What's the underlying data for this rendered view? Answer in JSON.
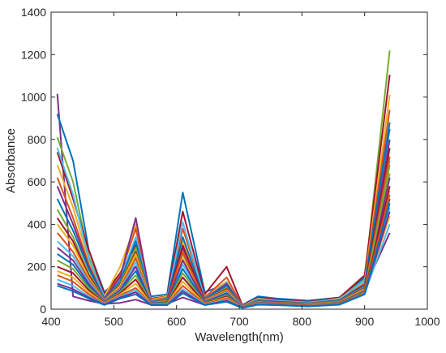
{
  "chart_data": {
    "type": "line",
    "title": "",
    "xlabel": "Wavelength(nm)",
    "ylabel": "Absorbance",
    "xlim": [
      400,
      1000
    ],
    "ylim": [
      0,
      1400
    ],
    "xticks": [
      400,
      500,
      600,
      700,
      800,
      900,
      1000
    ],
    "yticks": [
      0,
      200,
      400,
      600,
      800,
      1000,
      1200,
      1400
    ],
    "xtick_labels": [
      "400",
      "500",
      "600",
      "700",
      "800",
      "900",
      "1000"
    ],
    "ytick_labels": [
      "0",
      "200",
      "400",
      "600",
      "800",
      "1000",
      "1200",
      "1400"
    ],
    "grid": false,
    "legend": "none",
    "x": [
      410,
      435,
      460,
      485,
      510,
      535,
      560,
      585,
      610,
      645,
      680,
      705,
      730,
      760,
      810,
      860,
      900,
      940
    ],
    "series": [
      {
        "color": "#7E2F8E",
        "values": [
          1015,
          60,
          40,
          25,
          30,
          45,
          20,
          25,
          55,
          20,
          40,
          15,
          30,
          25,
          20,
          35,
          100,
          360
        ]
      },
      {
        "color": "#0072BD",
        "values": [
          920,
          700,
          280,
          80,
          150,
          200,
          60,
          70,
          550,
          80,
          120,
          20,
          60,
          50,
          40,
          55,
          150,
          850
        ]
      },
      {
        "color": "#77AC30",
        "values": [
          810,
          600,
          250,
          60,
          150,
          250,
          40,
          55,
          300,
          60,
          110,
          15,
          50,
          40,
          30,
          50,
          140,
          1220
        ]
      },
      {
        "color": "#A2142F",
        "values": [
          740,
          520,
          280,
          70,
          170,
          300,
          50,
          60,
          460,
          70,
          200,
          18,
          55,
          45,
          35,
          55,
          160,
          1105
        ]
      },
      {
        "color": "#EDB120",
        "values": [
          680,
          480,
          230,
          60,
          200,
          400,
          45,
          60,
          320,
          60,
          130,
          16,
          50,
          40,
          30,
          50,
          130,
          1010
        ]
      },
      {
        "color": "#D95319",
        "values": [
          620,
          430,
          210,
          55,
          160,
          380,
          40,
          55,
          380,
          55,
          150,
          15,
          45,
          38,
          30,
          45,
          120,
          940
        ]
      },
      {
        "color": "#4DBEEE",
        "values": [
          760,
          540,
          240,
          58,
          140,
          340,
          38,
          50,
          410,
          50,
          125,
          14,
          48,
          40,
          32,
          48,
          135,
          700
        ]
      },
      {
        "color": "#7E2F8E",
        "values": [
          580,
          400,
          200,
          50,
          150,
          430,
          35,
          48,
          290,
          48,
          120,
          14,
          42,
          36,
          28,
          42,
          115,
          800
        ]
      },
      {
        "color": "#0072BD",
        "values": [
          520,
          370,
          190,
          48,
          130,
          320,
          34,
          46,
          340,
          46,
          110,
          13,
          40,
          34,
          27,
          40,
          110,
          880
        ]
      },
      {
        "color": "#77AC30",
        "values": [
          470,
          340,
          170,
          45,
          120,
          290,
          32,
          44,
          260,
          44,
          100,
          13,
          38,
          32,
          26,
          38,
          105,
          640
        ]
      },
      {
        "color": "#A2142F",
        "values": [
          430,
          320,
          160,
          44,
          115,
          270,
          31,
          42,
          300,
          42,
          95,
          12,
          36,
          31,
          25,
          36,
          100,
          760
        ]
      },
      {
        "color": "#EDB120",
        "values": [
          400,
          300,
          150,
          42,
          110,
          260,
          30,
          40,
          240,
          40,
          90,
          12,
          34,
          30,
          24,
          34,
          95,
          560
        ]
      },
      {
        "color": "#D95319",
        "values": [
          360,
          270,
          140,
          40,
          100,
          240,
          29,
          38,
          270,
          38,
          85,
          11,
          32,
          29,
          23,
          32,
          90,
          720
        ]
      },
      {
        "color": "#4DBEEE",
        "values": [
          320,
          250,
          130,
          38,
          95,
          220,
          28,
          36,
          210,
          36,
          80,
          11,
          30,
          28,
          22,
          30,
          88,
          480
        ]
      },
      {
        "color": "#7E2F8E",
        "values": [
          290,
          230,
          120,
          36,
          90,
          200,
          27,
          34,
          230,
          34,
          75,
          10,
          29,
          27,
          21,
          29,
          86,
          620
        ]
      },
      {
        "color": "#0072BD",
        "values": [
          260,
          210,
          110,
          34,
          85,
          180,
          26,
          32,
          190,
          32,
          70,
          10,
          28,
          26,
          20,
          28,
          84,
          520
        ]
      },
      {
        "color": "#77AC30",
        "values": [
          230,
          190,
          100,
          32,
          80,
          160,
          25,
          30,
          170,
          30,
          65,
          9,
          27,
          25,
          19,
          27,
          82,
          680
        ]
      },
      {
        "color": "#A2142F",
        "values": [
          200,
          170,
          90,
          30,
          75,
          140,
          24,
          28,
          150,
          28,
          60,
          9,
          26,
          24,
          18,
          26,
          80,
          580
        ]
      },
      {
        "color": "#EDB120",
        "values": [
          180,
          150,
          80,
          28,
          70,
          120,
          23,
          26,
          130,
          26,
          55,
          8,
          25,
          23,
          17,
          25,
          78,
          440
        ]
      },
      {
        "color": "#D95319",
        "values": [
          160,
          130,
          70,
          26,
          65,
          100,
          22,
          24,
          110,
          24,
          50,
          8,
          24,
          22,
          16,
          24,
          76,
          540
        ]
      },
      {
        "color": "#4DBEEE",
        "values": [
          140,
          110,
          60,
          24,
          60,
          90,
          21,
          22,
          95,
          22,
          45,
          7,
          23,
          21,
          15,
          23,
          74,
          400
        ]
      },
      {
        "color": "#7E2F8E",
        "values": [
          120,
          95,
          55,
          22,
          55,
          80,
          20,
          20,
          85,
          20,
          40,
          7,
          22,
          20,
          14,
          22,
          72,
          460
        ]
      },
      {
        "color": "#0072BD",
        "values": [
          110,
          85,
          50,
          20,
          50,
          70,
          19,
          19,
          75,
          19,
          35,
          6,
          21,
          19,
          13,
          21,
          70,
          500
        ]
      }
    ]
  }
}
